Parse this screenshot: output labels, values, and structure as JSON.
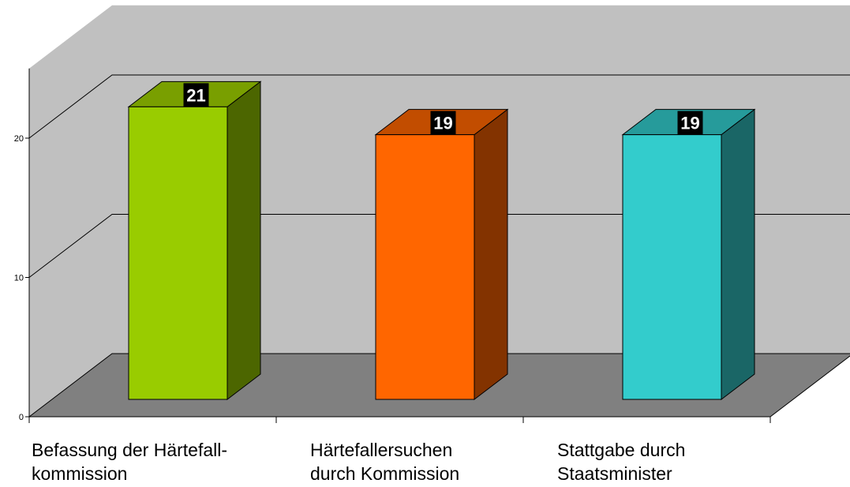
{
  "chart_data": {
    "type": "bar",
    "categories": [
      "Befassung der Härtefall-\nkommission",
      "Härtefallersuchen\ndurch Kommission",
      "Stattgabe durch\nStaatsminister"
    ],
    "values": [
      21,
      19,
      19
    ],
    "data_labels": [
      "21",
      "19",
      "19"
    ],
    "ylim": [
      0,
      20
    ],
    "yticks": [
      "0",
      "10",
      "20"
    ],
    "grid": true,
    "legend": "none",
    "style": "3d",
    "colors": {
      "bars": [
        {
          "front": "#99CC00",
          "top": "#799F00",
          "side": "#4C6600"
        },
        {
          "front": "#FF6600",
          "top": "#C24D00",
          "side": "#833300"
        },
        {
          "front": "#33CCCC",
          "top": "#269B9B",
          "side": "#1A6666"
        }
      ],
      "back_wall": "#C0C0C0",
      "side_wall": "#C0C0C0",
      "floor": "#808080",
      "label_box": "#000000",
      "label_text": "#FFFFFF"
    }
  }
}
